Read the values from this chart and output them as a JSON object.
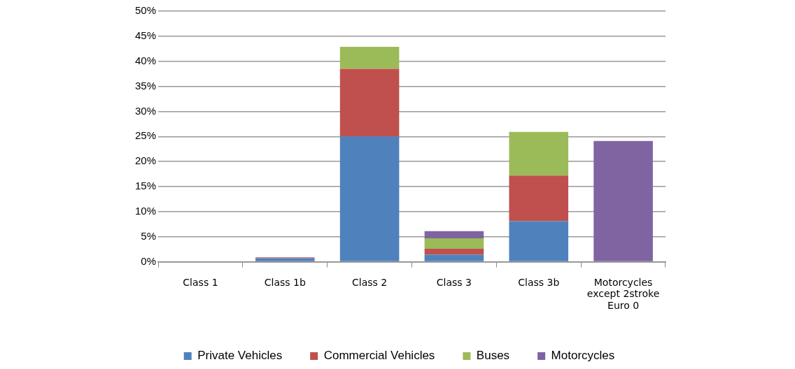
{
  "chart_data": {
    "type": "bar",
    "stacked": true,
    "categories": [
      "Class 1",
      "Class 1b",
      "Class 2",
      "Class 3",
      "Class 3b",
      "Motorcycles except 2stroke Euro 0"
    ],
    "series": [
      {
        "name": "Private Vehicles",
        "color": "#4f81bd",
        "values": [
          0,
          0.7,
          25.0,
          1.4,
          8.1,
          0
        ]
      },
      {
        "name": "Commercial Vehicles",
        "color": "#c0504d",
        "values": [
          0,
          0.2,
          13.5,
          1.2,
          9.1,
          0
        ]
      },
      {
        "name": "Buses",
        "color": "#9bbb59",
        "values": [
          0,
          0,
          4.4,
          2.1,
          8.7,
          0
        ]
      },
      {
        "name": "Motorcycles",
        "color": "#8064a2",
        "values": [
          0,
          0,
          0,
          1.4,
          0,
          24.1
        ]
      }
    ],
    "ylim": [
      0,
      50
    ],
    "yticks": [
      {
        "value": 0,
        "label": "0%"
      },
      {
        "value": 5,
        "label": "5%"
      },
      {
        "value": 10,
        "label": "10%"
      },
      {
        "value": 15,
        "label": "15%"
      },
      {
        "value": 20,
        "label": "20%"
      },
      {
        "value": 25,
        "label": "25%"
      },
      {
        "value": 30,
        "label": "30%"
      },
      {
        "value": 35,
        "label": "35%"
      },
      {
        "value": 40,
        "label": "40%"
      },
      {
        "value": 45,
        "label": "45%"
      },
      {
        "value": 50,
        "label": "50%"
      }
    ],
    "grid": "y",
    "legend": "bottom"
  }
}
